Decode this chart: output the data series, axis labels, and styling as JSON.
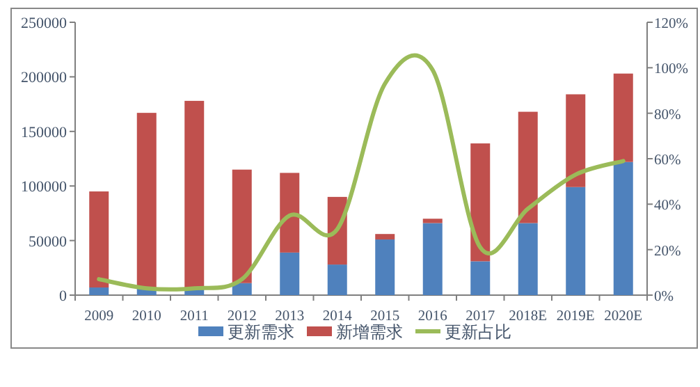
{
  "chart_data": {
    "type": "bar",
    "stacked": true,
    "legend": "bottom",
    "categories": [
      "2009",
      "2010",
      "2011",
      "2012",
      "2013",
      "2014",
      "2015",
      "2016",
      "2017",
      "2018E",
      "2019E",
      "2020E"
    ],
    "series": [
      {
        "name": "更新需求",
        "color": "#4f81bd",
        "values": [
          7000,
          6000,
          6000,
          11000,
          39000,
          28000,
          51000,
          66000,
          31000,
          66000,
          99000,
          122000
        ]
      },
      {
        "name": "新增需求",
        "color": "#c0504d",
        "values": [
          88000,
          161000,
          172000,
          104000,
          73000,
          62000,
          5000,
          4000,
          108000,
          102000,
          85000,
          81000
        ]
      },
      {
        "name": "更新占比",
        "type": "line",
        "axis": "y2",
        "color": "#9bbb59",
        "values": [
          7,
          3,
          3,
          7,
          35,
          29,
          93,
          99,
          21,
          38,
          53,
          59
        ]
      }
    ],
    "ylim": [
      0,
      250000
    ],
    "yticks": [
      0,
      50000,
      100000,
      150000,
      200000,
      250000
    ],
    "y2lim": [
      0,
      120
    ],
    "y2ticks": [
      {
        "value": 0,
        "label": "0%"
      },
      {
        "value": 20,
        "label": "20%"
      },
      {
        "value": 40,
        "label": "40%"
      },
      {
        "value": 60,
        "label": "60%"
      },
      {
        "value": 80,
        "label": "80%"
      },
      {
        "value": 100,
        "label": "100%"
      },
      {
        "value": 120,
        "label": "120%"
      }
    ]
  }
}
